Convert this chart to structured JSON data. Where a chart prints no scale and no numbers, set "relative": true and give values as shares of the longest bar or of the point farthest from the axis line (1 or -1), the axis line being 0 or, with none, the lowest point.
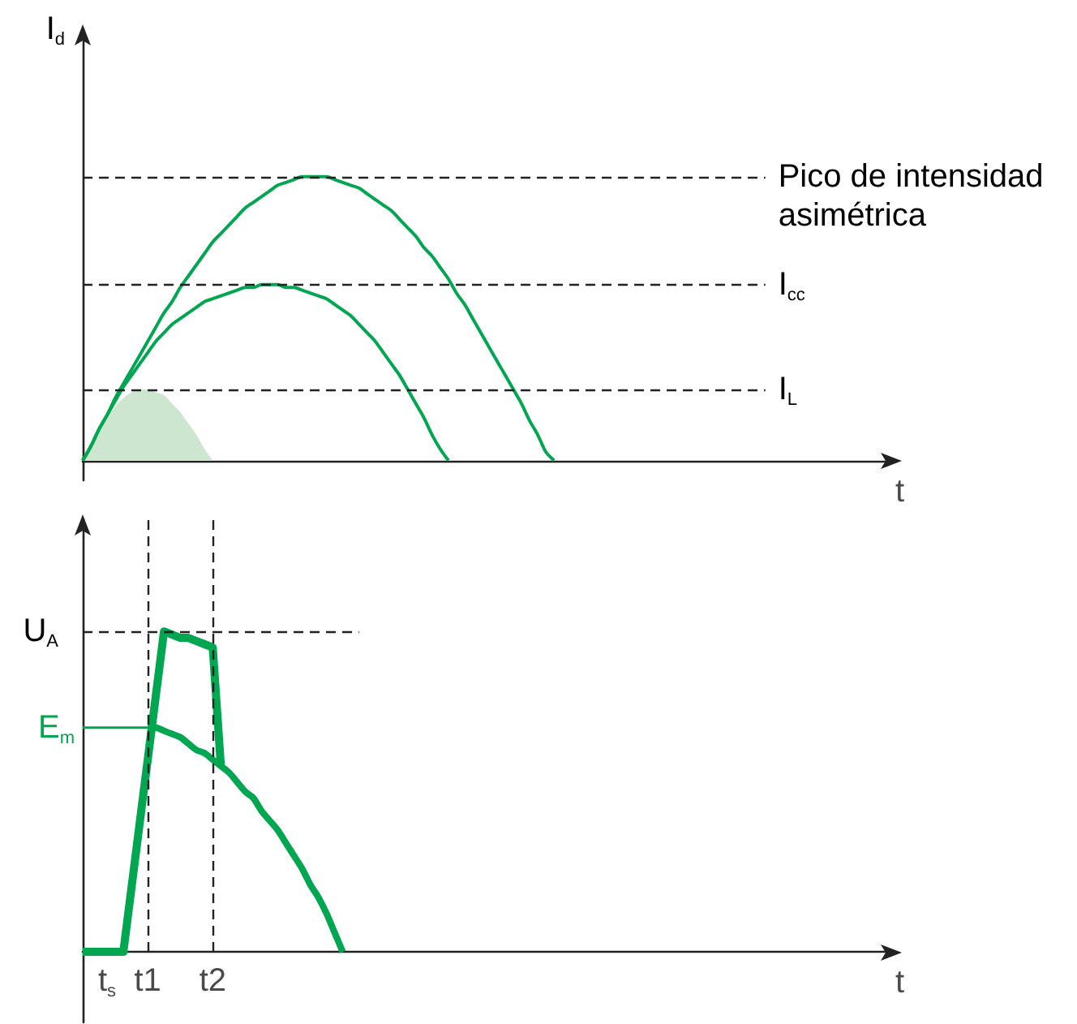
{
  "chart_data": [
    {
      "type": "line",
      "ylabel": "I$_{d}$",
      "xlabel": "t",
      "relative": true,
      "tick_labels": false,
      "marker": "none",
      "categories": [
        null,
        null,
        null,
        null,
        null,
        null,
        null,
        null,
        null,
        null,
        null,
        null,
        null,
        null,
        null,
        null,
        null,
        null,
        null,
        null,
        null,
        null,
        null,
        null,
        null,
        null,
        null,
        null,
        null,
        null,
        null,
        null,
        null,
        null,
        null,
        null,
        null,
        null,
        null,
        null,
        null,
        null,
        null,
        null,
        null,
        null,
        null,
        null,
        null,
        null,
        null,
        null,
        null,
        null,
        null,
        null,
        null,
        null,
        null,
        null,
        null,
        null,
        null,
        null,
        null,
        null,
        null,
        null,
        null,
        null,
        null,
        null,
        null,
        null,
        null,
        null,
        null,
        null,
        null,
        null,
        null,
        null,
        null,
        null,
        null,
        null,
        null,
        null,
        null,
        null,
        null,
        null,
        null,
        null,
        null,
        null,
        null,
        null,
        null,
        null,
        null
      ],
      "series": [
        {
          "color": "#00a650",
          "values": [
            0,
            0.05,
            0.11,
            0.16,
            0.22,
            0.27,
            0.32,
            0.37,
            0.42,
            0.47,
            0.52,
            0.56,
            0.61,
            0.65,
            0.69,
            0.73,
            0.77,
            0.8,
            0.83,
            0.86,
            0.89,
            0.91,
            0.93,
            0.95,
            0.97,
            0.98,
            0.99,
            1,
            1,
            1,
            1,
            0.99,
            0.98,
            0.97,
            0.96,
            0.94,
            0.92,
            0.9,
            0.88,
            0.85,
            0.82,
            0.79,
            0.75,
            0.72,
            0.68,
            0.64,
            0.59,
            0.55,
            0.5,
            0.45,
            0.4,
            0.35,
            0.3,
            0.25,
            0.2,
            0.14,
            0.09,
            0.03,
            0,
            null,
            null,
            null,
            null,
            null,
            null,
            null,
            null,
            null,
            null,
            null,
            null,
            null,
            null,
            null,
            null,
            null,
            null,
            null,
            null,
            null,
            null,
            null,
            null,
            null,
            null,
            null,
            null,
            null,
            null,
            null,
            null,
            null,
            null,
            null,
            null,
            null,
            null,
            null,
            null,
            null,
            null
          ]
        },
        {
          "color": "#00a650",
          "values": [
            0,
            0.05,
            0.11,
            0.16,
            0.21,
            0.26,
            0.3,
            0.34,
            0.38,
            0.42,
            0.45,
            0.48,
            0.5,
            0.52,
            0.54,
            0.56,
            0.57,
            0.58,
            0.59,
            0.6,
            0.61,
            0.61,
            0.62,
            0.62,
            0.62,
            0.61,
            0.61,
            0.6,
            0.59,
            0.58,
            0.57,
            0.55,
            0.53,
            0.51,
            0.48,
            0.45,
            0.42,
            0.38,
            0.34,
            0.3,
            0.25,
            0.2,
            0.15,
            0.09,
            0.04,
            0,
            null,
            null,
            null,
            null,
            null,
            null,
            null,
            null,
            null,
            null,
            null,
            null,
            null,
            null,
            null,
            null,
            null,
            null,
            null,
            null,
            null,
            null,
            null,
            null,
            null,
            null,
            null,
            null,
            null,
            null,
            null,
            null,
            null,
            null,
            null,
            null,
            null,
            null,
            null,
            null,
            null,
            null,
            null,
            null,
            null,
            null,
            null,
            null,
            null,
            null,
            null,
            null,
            null,
            null,
            null
          ]
        },
        {
          "type": "area",
          "color": "#cde6cf",
          "values": [
            0,
            0.05,
            0.1,
            0.15,
            0.19,
            0.22,
            0.24,
            0.25,
            0.25,
            0.24,
            0.23,
            0.2,
            0.17,
            0.13,
            0.09,
            0.04,
            0,
            null,
            null,
            null,
            null,
            null,
            null,
            null,
            null,
            null,
            null,
            null,
            null,
            null,
            null,
            null,
            null,
            null,
            null,
            null,
            null,
            null,
            null,
            null,
            null,
            null,
            null,
            null,
            null,
            null,
            null,
            null,
            null,
            null,
            null,
            null,
            null,
            null,
            null,
            null,
            null,
            null,
            null,
            null,
            null,
            null,
            null,
            null,
            null,
            null,
            null,
            null,
            null,
            null,
            null,
            null,
            null,
            null,
            null,
            null,
            null,
            null,
            null,
            null,
            null,
            null,
            null,
            null,
            null,
            null,
            null,
            null,
            null,
            null,
            null,
            null,
            null,
            null,
            null,
            null,
            null,
            null,
            null,
            null,
            null
          ]
        }
      ],
      "ref_lines": [
        {
          "axis": "y",
          "value": 1,
          "label": "Pico de intensidad asimétrica",
          "line_style": "dashed",
          "color": "#222222"
        },
        {
          "axis": "y",
          "value": 0.62,
          "label": "I$_{cc}$",
          "line_style": "dashed",
          "color": "#222222"
        },
        {
          "axis": "y",
          "value": 0.25,
          "label": "I$_{L}$",
          "line_style": "dashed",
          "color": "#222222"
        }
      ]
    },
    {
      "type": "line",
      "xlabel": "t",
      "relative": true,
      "tick_labels": "x",
      "marker": "none",
      "categories": [
        null,
        null,
        null,
        "t$_{s}$",
        null,
        null,
        null,
        null,
        "t1",
        null,
        null,
        null,
        null,
        null,
        null,
        null,
        "t2",
        null,
        null,
        null,
        null,
        null,
        null,
        null,
        null,
        null,
        null,
        null,
        null,
        null,
        null,
        null,
        null,
        null,
        null,
        null,
        null,
        null,
        null,
        null,
        null,
        null,
        null,
        null,
        null,
        null,
        null,
        null,
        null,
        null,
        null,
        null,
        null,
        null,
        null,
        null,
        null,
        null,
        null,
        null,
        null,
        null,
        null,
        null,
        null,
        null,
        null,
        null,
        null,
        null,
        null,
        null,
        null,
        null,
        null,
        null,
        null,
        null,
        null,
        null,
        null,
        null,
        null,
        null,
        null,
        null,
        null,
        null,
        null,
        null,
        null,
        null,
        null,
        null,
        null,
        null,
        null,
        null,
        null,
        null,
        null
      ],
      "series": [
        {
          "name": "E$_{m}$",
          "color": "#00a650",
          "values": [
            0.7,
            0.7,
            0.7,
            0.7,
            0.7,
            0.7,
            0.7,
            0.7,
            0.7,
            null,
            null,
            null,
            null,
            null,
            null,
            null,
            null,
            null,
            null,
            null,
            null,
            null,
            null,
            null,
            null,
            null,
            null,
            null,
            null,
            null,
            null,
            null,
            null,
            null,
            null,
            null,
            null,
            null,
            null,
            null,
            null,
            null,
            null,
            null,
            null,
            null,
            null,
            null,
            null,
            null,
            null,
            null,
            null,
            null,
            null,
            null,
            null,
            null,
            null,
            null,
            null,
            null,
            null,
            null,
            null,
            null,
            null,
            null,
            null,
            null,
            null,
            null,
            null,
            null,
            null,
            null,
            null,
            null,
            null,
            null,
            null,
            null,
            null,
            null,
            null,
            null,
            null,
            null,
            null,
            null,
            null,
            null,
            null,
            null,
            null,
            null,
            null,
            null,
            null,
            null,
            null
          ]
        },
        {
          "color": "#00a650",
          "values": [
            0,
            0,
            0,
            0,
            0,
            0,
            0.2,
            0.4,
            0.6,
            0.8,
            1,
            0.99,
            0.98,
            0.98,
            0.97,
            0.96,
            0.95,
            0.58,
            null,
            null,
            null,
            null,
            null,
            null,
            null,
            null,
            null,
            null,
            null,
            null,
            null,
            null,
            null,
            null,
            null,
            null,
            null,
            null,
            null,
            null,
            null,
            null,
            null,
            null,
            null,
            null,
            null,
            null,
            null,
            null,
            null,
            null,
            null,
            null,
            null,
            null,
            null,
            null,
            null,
            null,
            null,
            null,
            null,
            null,
            null,
            null,
            null,
            null,
            null,
            null,
            null,
            null,
            null,
            null,
            null,
            null,
            null,
            null,
            null,
            null,
            null,
            null,
            null,
            null,
            null,
            null,
            null,
            null,
            null,
            null,
            null,
            null,
            null,
            null,
            null,
            null,
            null,
            null,
            null,
            null,
            null
          ]
        },
        {
          "color": "#00a650",
          "values": [
            null,
            null,
            null,
            null,
            null,
            null,
            null,
            null,
            0.7,
            0.7,
            0.69,
            0.68,
            0.67,
            0.65,
            0.63,
            0.62,
            0.6,
            0.58,
            0.56,
            0.53,
            0.5,
            0.48,
            0.44,
            0.41,
            0.38,
            0.34,
            0.3,
            0.26,
            0.21,
            0.17,
            0.12,
            0.06,
            0,
            null,
            null,
            null,
            null,
            null,
            null,
            null,
            null,
            null,
            null,
            null,
            null,
            null,
            null,
            null,
            null,
            null,
            null,
            null,
            null,
            null,
            null,
            null,
            null,
            null,
            null,
            null,
            null,
            null,
            null,
            null,
            null,
            null,
            null,
            null,
            null,
            null,
            null,
            null,
            null,
            null,
            null,
            null,
            null,
            null,
            null,
            null,
            null,
            null,
            null,
            null,
            null,
            null,
            null,
            null,
            null,
            null,
            null,
            null,
            null,
            null,
            null,
            null,
            null,
            null,
            null,
            null,
            null
          ]
        }
      ],
      "ref_lines": [
        {
          "axis": "y",
          "value": 1,
          "label": "U$_{A}$",
          "line_style": "dashed",
          "color": "#222222"
        },
        {
          "axis": "x",
          "value": "t1",
          "line_style": "dashed",
          "color": "#222222"
        },
        {
          "axis": "x",
          "value": "t2",
          "line_style": "dashed",
          "color": "#222222"
        }
      ]
    }
  ]
}
